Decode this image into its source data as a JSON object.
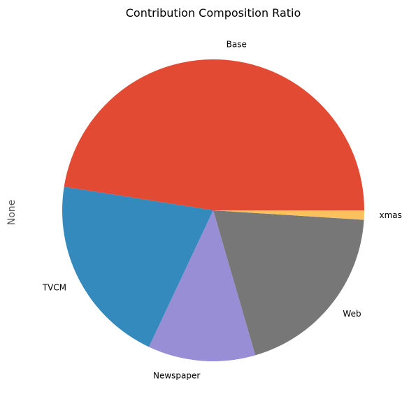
{
  "chart_data": {
    "type": "pie",
    "title": "Contribution Composition Ratio",
    "ylabel": "None",
    "start_angle_deg": 0,
    "direction": "counterclockwise",
    "slices": [
      {
        "label": "Base",
        "value": 47.5,
        "color": "#E24A33"
      },
      {
        "label": "TVCM",
        "value": 20.5,
        "color": "#348ABD"
      },
      {
        "label": "Newspaper",
        "value": 11.5,
        "color": "#988ED5"
      },
      {
        "label": "Web",
        "value": 19.5,
        "color": "#777777"
      },
      {
        "label": "xmas",
        "value": 1.0,
        "color": "#FBC15E"
      }
    ]
  }
}
